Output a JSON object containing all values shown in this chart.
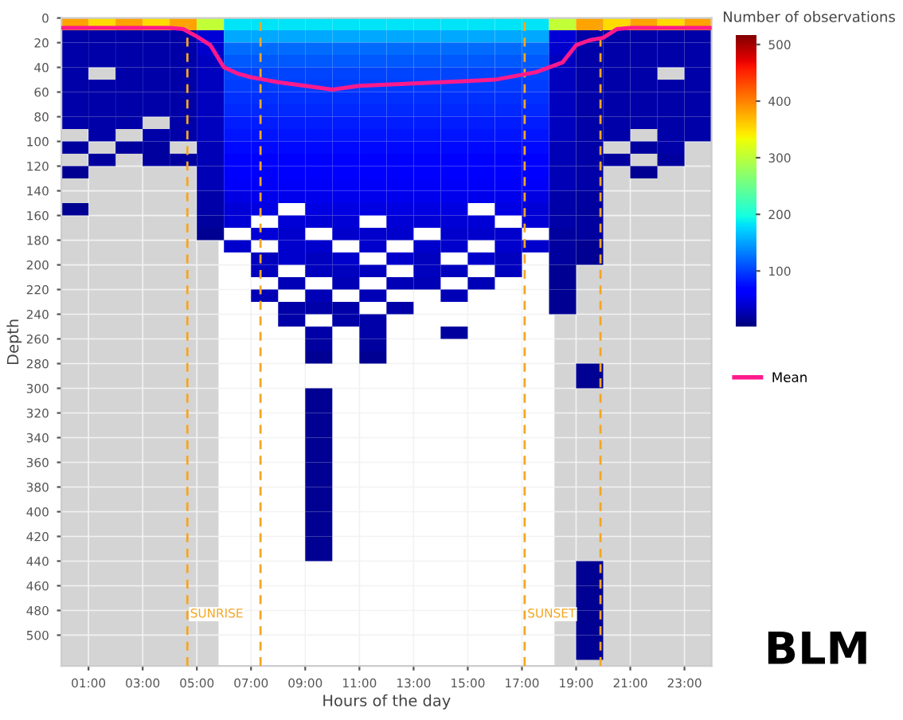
{
  "chart_data": {
    "type": "heatmap",
    "xlabel": "Hours of the day",
    "ylabel": "Depth",
    "clabel": "Number of observations",
    "x": [
      0.5,
      1.5,
      2.5,
      3.5,
      4.5,
      5.5,
      6.5,
      7.5,
      8.5,
      9.5,
      10.5,
      11.5,
      12.5,
      13.5,
      14.5,
      15.5,
      16.5,
      17.5,
      18.5,
      19.5,
      20.5,
      21.5,
      22.5,
      23.5
    ],
    "y": [
      5,
      15,
      25,
      35,
      45,
      55,
      65,
      75,
      85,
      95,
      105,
      115,
      125,
      135,
      145,
      155,
      165,
      175,
      185,
      195,
      205,
      215,
      225,
      235,
      245,
      255,
      265,
      275,
      285,
      295,
      305,
      315,
      325,
      335,
      345,
      355,
      365,
      375,
      385,
      395,
      405,
      415,
      425,
      435,
      445,
      455,
      465,
      475,
      485,
      495,
      505,
      515
    ],
    "cells": [
      [
        380,
        350,
        380,
        350,
        380,
        300,
        180,
        180,
        180,
        180,
        180,
        180,
        180,
        180,
        180,
        180,
        180,
        180,
        300,
        380,
        350,
        380,
        350,
        380
      ],
      [
        20,
        20,
        20,
        20,
        20,
        40,
        150,
        150,
        150,
        150,
        150,
        150,
        150,
        150,
        150,
        150,
        150,
        150,
        40,
        20,
        20,
        20,
        20,
        20
      ],
      [
        20,
        20,
        20,
        20,
        20,
        35,
        120,
        120,
        120,
        120,
        120,
        120,
        120,
        120,
        120,
        120,
        120,
        120,
        35,
        20,
        20,
        20,
        20,
        20
      ],
      [
        20,
        20,
        20,
        20,
        20,
        30,
        110,
        110,
        110,
        110,
        110,
        110,
        110,
        110,
        110,
        110,
        110,
        110,
        30,
        20,
        20,
        20,
        20,
        20
      ],
      [
        20,
        null,
        20,
        20,
        20,
        30,
        100,
        100,
        100,
        100,
        100,
        100,
        100,
        100,
        100,
        100,
        100,
        100,
        30,
        20,
        20,
        20,
        null,
        20
      ],
      [
        20,
        20,
        20,
        20,
        20,
        30,
        95,
        95,
        95,
        95,
        95,
        95,
        95,
        95,
        95,
        95,
        95,
        95,
        30,
        20,
        20,
        20,
        20,
        20
      ],
      [
        20,
        20,
        20,
        20,
        20,
        30,
        90,
        90,
        90,
        90,
        90,
        90,
        90,
        90,
        90,
        90,
        90,
        90,
        30,
        20,
        20,
        20,
        20,
        20
      ],
      [
        20,
        20,
        20,
        20,
        20,
        30,
        85,
        85,
        85,
        85,
        85,
        85,
        85,
        85,
        85,
        85,
        85,
        85,
        30,
        20,
        20,
        20,
        20,
        20
      ],
      [
        20,
        20,
        20,
        null,
        20,
        30,
        80,
        80,
        80,
        80,
        80,
        80,
        80,
        80,
        80,
        80,
        80,
        80,
        30,
        20,
        20,
        20,
        20,
        20
      ],
      [
        null,
        20,
        null,
        20,
        20,
        30,
        75,
        75,
        75,
        75,
        75,
        75,
        75,
        75,
        75,
        75,
        75,
        75,
        30,
        20,
        20,
        null,
        20,
        20
      ],
      [
        15,
        null,
        15,
        15,
        null,
        25,
        70,
        70,
        70,
        70,
        70,
        70,
        70,
        70,
        70,
        70,
        70,
        70,
        25,
        20,
        null,
        15,
        20,
        null
      ],
      [
        null,
        15,
        null,
        15,
        15,
        25,
        65,
        65,
        65,
        65,
        65,
        65,
        65,
        65,
        65,
        65,
        65,
        65,
        25,
        20,
        15,
        null,
        15,
        null
      ],
      [
        10,
        null,
        null,
        null,
        null,
        25,
        60,
        60,
        60,
        60,
        60,
        60,
        60,
        60,
        60,
        60,
        60,
        60,
        25,
        20,
        null,
        10,
        null,
        null
      ],
      [
        null,
        null,
        null,
        null,
        null,
        25,
        55,
        55,
        55,
        55,
        55,
        55,
        55,
        55,
        55,
        55,
        55,
        55,
        25,
        20,
        null,
        null,
        null,
        null
      ],
      [
        null,
        null,
        null,
        null,
        null,
        20,
        45,
        50,
        50,
        50,
        50,
        50,
        50,
        50,
        50,
        50,
        50,
        45,
        20,
        15,
        null,
        null,
        null,
        null
      ],
      [
        10,
        null,
        null,
        null,
        null,
        20,
        40,
        45,
        null,
        45,
        45,
        45,
        45,
        45,
        45,
        null,
        45,
        40,
        20,
        15,
        null,
        null,
        null,
        null
      ],
      [
        null,
        null,
        null,
        null,
        null,
        15,
        40,
        null,
        40,
        40,
        40,
        null,
        40,
        40,
        40,
        40,
        null,
        40,
        20,
        15,
        null,
        null,
        null,
        null
      ],
      [
        null,
        null,
        null,
        null,
        null,
        10,
        null,
        40,
        35,
        null,
        35,
        35,
        35,
        null,
        35,
        35,
        35,
        null,
        15,
        15,
        null,
        null,
        null,
        null
      ],
      [
        null,
        null,
        null,
        null,
        null,
        null,
        35,
        null,
        35,
        35,
        null,
        35,
        null,
        35,
        35,
        null,
        35,
        35,
        15,
        10,
        null,
        null,
        null,
        null
      ],
      [
        null,
        null,
        null,
        null,
        null,
        null,
        null,
        30,
        35,
        30,
        35,
        null,
        35,
        30,
        null,
        35,
        30,
        null,
        15,
        10,
        null,
        null,
        null,
        null
      ],
      [
        null,
        null,
        null,
        null,
        null,
        null,
        null,
        30,
        null,
        30,
        30,
        30,
        null,
        30,
        30,
        null,
        30,
        null,
        10,
        null,
        null,
        null,
        null,
        null
      ],
      [
        null,
        null,
        null,
        null,
        null,
        null,
        null,
        null,
        25,
        null,
        25,
        null,
        25,
        25,
        null,
        25,
        null,
        null,
        10,
        null,
        null,
        null,
        null,
        null
      ],
      [
        null,
        null,
        null,
        null,
        null,
        null,
        null,
        25,
        null,
        25,
        null,
        25,
        null,
        null,
        25,
        null,
        null,
        null,
        10,
        null,
        null,
        null,
        null,
        null
      ],
      [
        null,
        null,
        null,
        null,
        null,
        null,
        null,
        null,
        20,
        20,
        20,
        null,
        20,
        null,
        null,
        null,
        null,
        null,
        10,
        null,
        null,
        null,
        null,
        null
      ],
      [
        null,
        null,
        null,
        null,
        null,
        null,
        null,
        null,
        20,
        null,
        20,
        20,
        null,
        null,
        null,
        null,
        null,
        null,
        null,
        null,
        null,
        null,
        null,
        null
      ],
      [
        null,
        null,
        null,
        null,
        null,
        null,
        null,
        null,
        null,
        20,
        null,
        20,
        null,
        null,
        15,
        null,
        null,
        null,
        null,
        null,
        null,
        null,
        null,
        null
      ],
      [
        null,
        null,
        null,
        null,
        null,
        null,
        null,
        null,
        null,
        15,
        null,
        15,
        null,
        null,
        null,
        null,
        null,
        null,
        null,
        null,
        null,
        null,
        null,
        null
      ],
      [
        null,
        null,
        null,
        null,
        null,
        null,
        null,
        null,
        null,
        10,
        null,
        10,
        null,
        null,
        null,
        null,
        null,
        null,
        null,
        null,
        null,
        null,
        null,
        null
      ],
      [
        null,
        null,
        null,
        null,
        null,
        null,
        null,
        null,
        null,
        null,
        null,
        null,
        null,
        null,
        null,
        null,
        null,
        null,
        null,
        10,
        null,
        null,
        null,
        null
      ],
      [
        null,
        null,
        null,
        null,
        null,
        null,
        null,
        null,
        null,
        null,
        null,
        null,
        null,
        null,
        null,
        null,
        null,
        null,
        null,
        10,
        null,
        null,
        null,
        null
      ],
      [
        null,
        null,
        null,
        null,
        null,
        null,
        null,
        null,
        null,
        10,
        null,
        null,
        null,
        null,
        null,
        null,
        null,
        null,
        null,
        null,
        null,
        null,
        null,
        null
      ],
      [
        null,
        null,
        null,
        null,
        null,
        null,
        null,
        null,
        null,
        10,
        null,
        null,
        null,
        null,
        null,
        null,
        null,
        null,
        null,
        null,
        null,
        null,
        null,
        null
      ],
      [
        null,
        null,
        null,
        null,
        null,
        null,
        null,
        null,
        null,
        10,
        null,
        null,
        null,
        null,
        null,
        null,
        null,
        null,
        null,
        null,
        null,
        null,
        null,
        null
      ],
      [
        null,
        null,
        null,
        null,
        null,
        null,
        null,
        null,
        null,
        10,
        null,
        null,
        null,
        null,
        null,
        null,
        null,
        null,
        null,
        null,
        null,
        null,
        null,
        null
      ],
      [
        null,
        null,
        null,
        null,
        null,
        null,
        null,
        null,
        null,
        10,
        null,
        null,
        null,
        null,
        null,
        null,
        null,
        null,
        null,
        null,
        null,
        null,
        null,
        null
      ],
      [
        null,
        null,
        null,
        null,
        null,
        null,
        null,
        null,
        null,
        10,
        null,
        null,
        null,
        null,
        null,
        null,
        null,
        null,
        null,
        null,
        null,
        null,
        null,
        null
      ],
      [
        null,
        null,
        null,
        null,
        null,
        null,
        null,
        null,
        null,
        10,
        null,
        null,
        null,
        null,
        null,
        null,
        null,
        null,
        null,
        null,
        null,
        null,
        null,
        null
      ],
      [
        null,
        null,
        null,
        null,
        null,
        null,
        null,
        null,
        null,
        10,
        null,
        null,
        null,
        null,
        null,
        null,
        null,
        null,
        null,
        null,
        null,
        null,
        null,
        null
      ],
      [
        null,
        null,
        null,
        null,
        null,
        null,
        null,
        null,
        null,
        10,
        null,
        null,
        null,
        null,
        null,
        null,
        null,
        null,
        null,
        null,
        null,
        null,
        null,
        null
      ],
      [
        null,
        null,
        null,
        null,
        null,
        null,
        null,
        null,
        null,
        10,
        null,
        null,
        null,
        null,
        null,
        null,
        null,
        null,
        null,
        null,
        null,
        null,
        null,
        null
      ],
      [
        null,
        null,
        null,
        null,
        null,
        null,
        null,
        null,
        null,
        10,
        null,
        null,
        null,
        null,
        null,
        null,
        null,
        null,
        null,
        null,
        null,
        null,
        null,
        null
      ],
      [
        null,
        null,
        null,
        null,
        null,
        null,
        null,
        null,
        null,
        10,
        null,
        null,
        null,
        null,
        null,
        null,
        null,
        null,
        null,
        null,
        null,
        null,
        null,
        null
      ],
      [
        null,
        null,
        null,
        null,
        null,
        null,
        null,
        null,
        null,
        10,
        null,
        null,
        null,
        null,
        null,
        null,
        null,
        null,
        null,
        null,
        null,
        null,
        null,
        null
      ],
      [
        null,
        null,
        null,
        null,
        null,
        null,
        null,
        null,
        null,
        10,
        null,
        null,
        null,
        null,
        null,
        null,
        null,
        null,
        null,
        null,
        null,
        null,
        null,
        null
      ],
      [
        null,
        null,
        null,
        null,
        null,
        null,
        null,
        null,
        null,
        null,
        null,
        null,
        null,
        null,
        null,
        null,
        null,
        null,
        null,
        10,
        null,
        null,
        null,
        null
      ],
      [
        null,
        null,
        null,
        null,
        null,
        null,
        null,
        null,
        null,
        null,
        null,
        null,
        null,
        null,
        null,
        null,
        null,
        null,
        null,
        10,
        null,
        null,
        null,
        null
      ],
      [
        null,
        null,
        null,
        null,
        null,
        null,
        null,
        null,
        null,
        null,
        null,
        null,
        null,
        null,
        null,
        null,
        null,
        null,
        null,
        10,
        null,
        null,
        null,
        null
      ],
      [
        null,
        null,
        null,
        null,
        null,
        null,
        null,
        null,
        null,
        null,
        null,
        null,
        null,
        null,
        null,
        null,
        null,
        null,
        null,
        10,
        null,
        null,
        null,
        null
      ],
      [
        null,
        null,
        null,
        null,
        null,
        null,
        null,
        null,
        null,
        null,
        null,
        null,
        null,
        null,
        null,
        null,
        null,
        null,
        null,
        10,
        null,
        null,
        null,
        null
      ],
      [
        null,
        null,
        null,
        null,
        null,
        null,
        null,
        null,
        null,
        null,
        null,
        null,
        null,
        null,
        null,
        null,
        null,
        null,
        null,
        10,
        null,
        null,
        null,
        null
      ],
      [
        null,
        null,
        null,
        null,
        null,
        null,
        null,
        null,
        null,
        null,
        null,
        null,
        null,
        null,
        null,
        null,
        null,
        null,
        null,
        10,
        null,
        null,
        null,
        null
      ],
      [
        null,
        null,
        null,
        null,
        null,
        null,
        null,
        null,
        null,
        null,
        null,
        null,
        null,
        null,
        null,
        null,
        null,
        null,
        null,
        10,
        null,
        null,
        null,
        null
      ]
    ],
    "clim": [
      0,
      515
    ],
    "cticks": [
      100,
      200,
      300,
      400,
      500
    ],
    "series": [
      {
        "name": "Mean",
        "type": "line",
        "color": "#ff1a8c",
        "x": [
          0,
          1,
          2,
          3,
          4,
          4.5,
          5,
          5.5,
          6,
          6.5,
          7,
          7.5,
          8,
          9,
          10,
          11,
          12,
          13,
          14,
          15,
          16,
          17,
          17.5,
          18,
          18.5,
          19,
          19.5,
          20,
          20.5,
          21,
          22,
          23,
          24
        ],
        "values": [
          8,
          8,
          8,
          8,
          8,
          9,
          15,
          22,
          40,
          45,
          48,
          50,
          52,
          55,
          58,
          55,
          54,
          53,
          52,
          51,
          50,
          46,
          44,
          40,
          36,
          22,
          18,
          16,
          9,
          8,
          8,
          8,
          8
        ]
      }
    ],
    "xlim": [
      0,
      24
    ],
    "ylim": [
      525,
      0
    ],
    "xticks": [
      {
        "value": 1,
        "label": "01:00"
      },
      {
        "value": 3,
        "label": "03:00"
      },
      {
        "value": 5,
        "label": "05:00"
      },
      {
        "value": 7,
        "label": "07:00"
      },
      {
        "value": 9,
        "label": "09:00"
      },
      {
        "value": 11,
        "label": "11:00"
      },
      {
        "value": 13,
        "label": "13:00"
      },
      {
        "value": 15,
        "label": "15:00"
      },
      {
        "value": 17,
        "label": "17:00"
      },
      {
        "value": 19,
        "label": "19:00"
      },
      {
        "value": 21,
        "label": "21:00"
      },
      {
        "value": 23,
        "label": "23:00"
      }
    ],
    "yticks": [
      0,
      20,
      40,
      60,
      80,
      100,
      120,
      140,
      160,
      180,
      200,
      220,
      240,
      260,
      280,
      300,
      320,
      340,
      360,
      380,
      400,
      420,
      440,
      460,
      480,
      500
    ],
    "bands": [
      {
        "axis": "x",
        "from": 0,
        "to": 5.8,
        "color": "#d4d4d4"
      },
      {
        "axis": "x",
        "from": 18.2,
        "to": 24,
        "color": "#d4d4d4"
      }
    ],
    "ref_lines": [
      {
        "axis": "x",
        "value": 4.65,
        "label": "SUNRISE",
        "color": "#f5a623",
        "line_style": "dashed"
      },
      {
        "axis": "x",
        "value": 7.35,
        "label": null,
        "color": "#f5a623",
        "line_style": "dashed"
      },
      {
        "axis": "x",
        "value": 17.1,
        "label": "SUNSET",
        "color": "#f5a623",
        "line_style": "dashed"
      },
      {
        "axis": "x",
        "value": 19.9,
        "label": null,
        "color": "#f5a623",
        "line_style": "dashed"
      }
    ],
    "annotations": [
      "BLM"
    ],
    "grid": true,
    "legend": "right"
  }
}
